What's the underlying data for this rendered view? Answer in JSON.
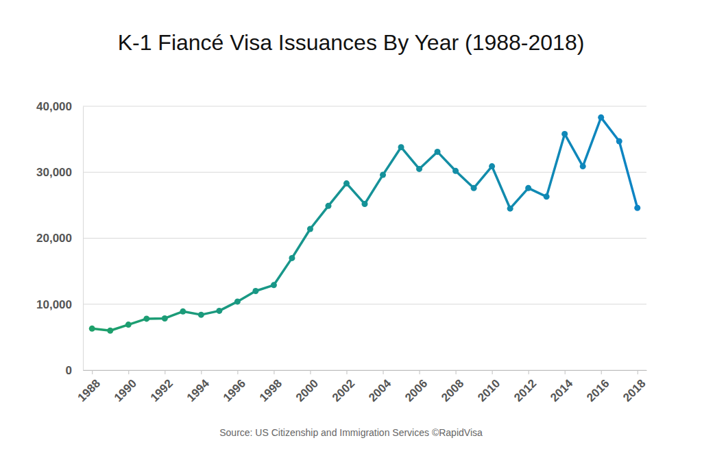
{
  "chart_data": {
    "type": "line",
    "title": "K-1 Fiancé Visa Issuances By Year (1988-2018)",
    "source": "Source: US Citizenship and Immigration Services ©RapidVisa",
    "x": [
      1988,
      1989,
      1990,
      1991,
      1992,
      1993,
      1994,
      1995,
      1996,
      1997,
      1998,
      1999,
      2000,
      2001,
      2002,
      2003,
      2004,
      2005,
      2006,
      2007,
      2008,
      2009,
      2010,
      2011,
      2012,
      2013,
      2014,
      2015,
      2016,
      2017,
      2018
    ],
    "values": [
      6300,
      6000,
      6900,
      7800,
      7850,
      8900,
      8400,
      9000,
      10400,
      12000,
      12900,
      17000,
      21400,
      24900,
      28300,
      25200,
      29600,
      33800,
      30500,
      33100,
      30200,
      27600,
      30900,
      24500,
      27600,
      26300,
      35800,
      30900,
      38300,
      34700,
      24600
    ],
    "colors": [
      "#1ea06a",
      "#1d9f6d",
      "#1d9e70",
      "#1c9d73",
      "#1c9c76",
      "#1b9b79",
      "#1b9a7c",
      "#1a997f",
      "#199982",
      "#199885",
      "#189788",
      "#18968b",
      "#17958e",
      "#179491",
      "#169394",
      "#159297",
      "#15919a",
      "#14909d",
      "#148fa0",
      "#138ea3",
      "#138da6",
      "#128ca9",
      "#128bac",
      "#118baf",
      "#108ab2",
      "#1089b5",
      "#0f88b8",
      "#0f87bb",
      "#0e86be",
      "#0e85c1",
      "#0d84c4"
    ],
    "marker": "circle",
    "grid": true,
    "xlim": [
      1987.5,
      2018.5
    ],
    "xticks": [
      1988,
      1990,
      1992,
      1994,
      1996,
      1998,
      2000,
      2002,
      2004,
      2006,
      2008,
      2010,
      2012,
      2014,
      2016,
      2018
    ],
    "ylim": [
      0,
      40000
    ],
    "yticks": [
      0,
      {
        "value": 10000,
        "label": "10,000"
      },
      {
        "value": 20000,
        "label": "20,000"
      },
      {
        "value": 30000,
        "label": "30,000"
      },
      {
        "value": 40000,
        "label": "40,000"
      }
    ]
  }
}
